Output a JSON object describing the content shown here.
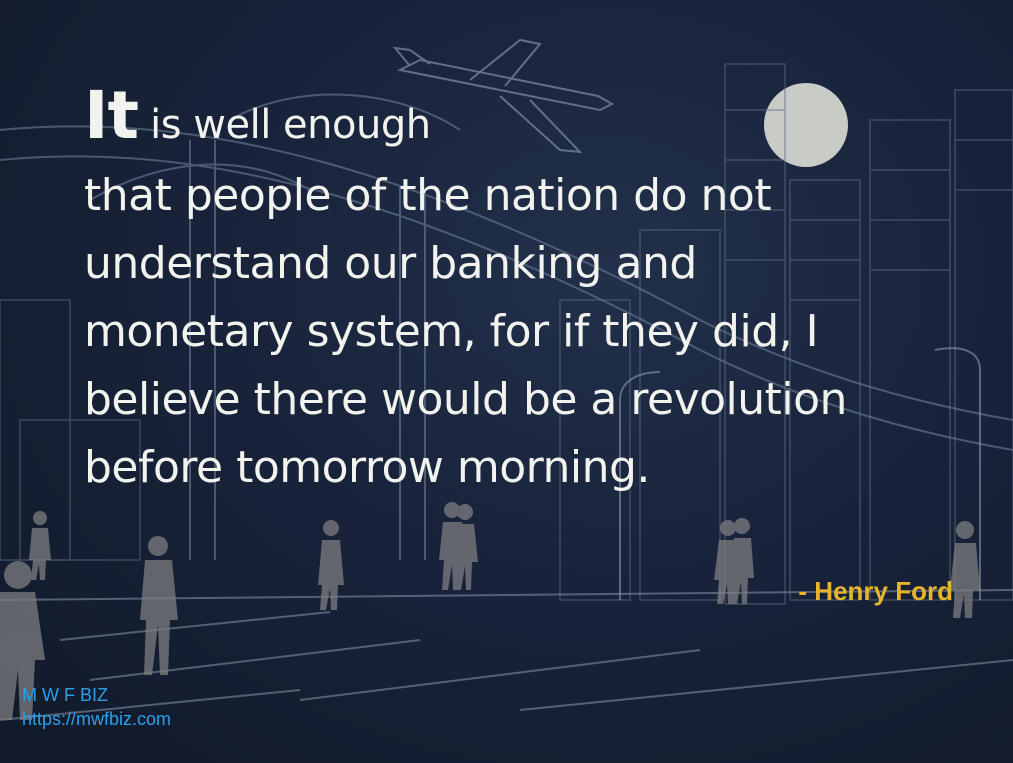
{
  "quote": {
    "lead_word": "It",
    "lead_rest": "is well enough",
    "lines": [
      "that people of the nation do not",
      "understand our banking and",
      "monetary system, for if they did, I",
      "believe there would be a revolution",
      "before tomorrow morning."
    ]
  },
  "author": "- Henry Ford",
  "brand": {
    "name": "M W F BIZ",
    "url": "https://mwfbiz.com"
  },
  "colors": {
    "background": "#152033",
    "text": "#f2f2ee",
    "author": "#e7b42a",
    "brand": "#2ba0e8"
  }
}
